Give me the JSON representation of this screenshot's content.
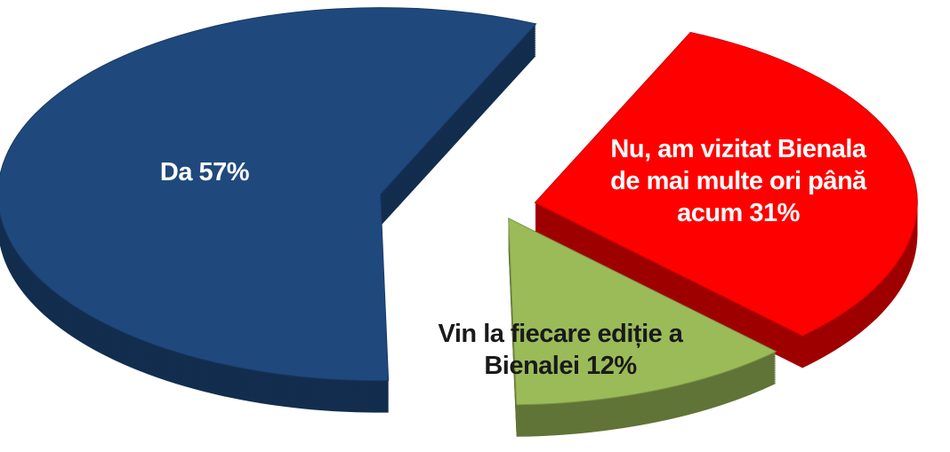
{
  "chart_data": {
    "type": "pie",
    "categories": [
      "Da",
      "Nu, am vizitat Bienala de mai multe ori până acum",
      "Vin la fiecare ediție a Bienalei"
    ],
    "values": [
      57,
      31,
      12
    ],
    "value_labels": [
      "57%",
      "31%",
      "12%"
    ],
    "colors": [
      "#1f497d",
      "#ff0000",
      "#9bbb59"
    ]
  }
}
